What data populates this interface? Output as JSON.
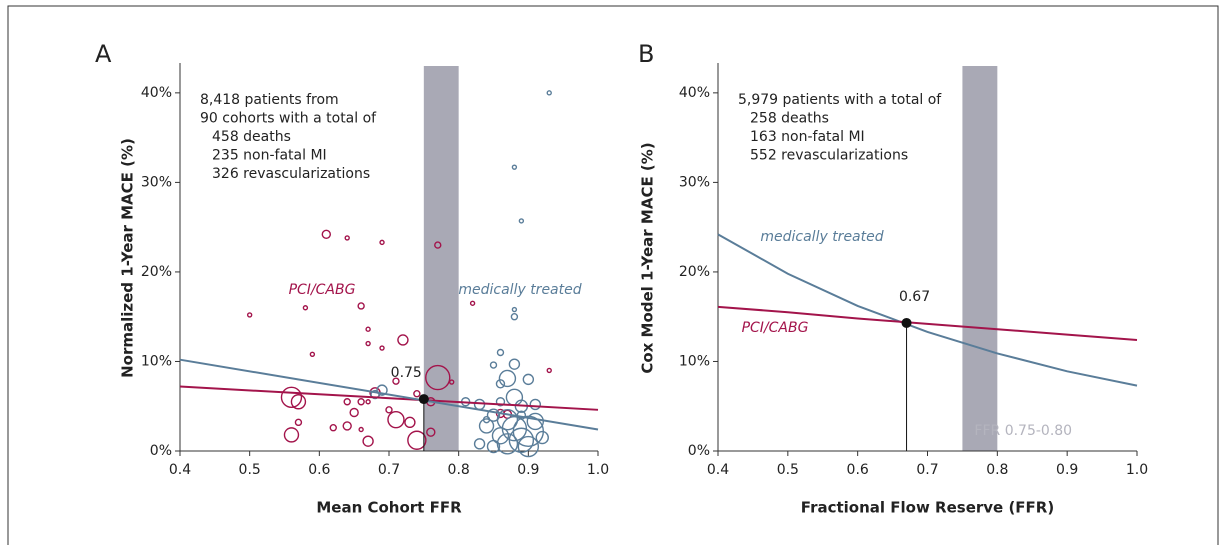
{
  "chart_data": [
    {
      "type": "scatter",
      "panel": "A",
      "ylabel": "Normalized 1-Year MACE (%)",
      "xlabel": "Mean Cohort FFR",
      "xlim": [
        0.4,
        1.0
      ],
      "ylim": [
        0,
        43
      ],
      "xticks": [
        0.4,
        0.5,
        0.6,
        0.7,
        0.8,
        0.9,
        {
          "value": 1,
          "label": "1.0"
        }
      ],
      "yticks": [
        {
          "value": 0,
          "label": "0%"
        },
        {
          "value": 10,
          "label": "10%"
        },
        {
          "value": 20,
          "label": "20%"
        },
        {
          "value": 30,
          "label": "30%"
        },
        {
          "value": 40,
          "label": "40%"
        }
      ],
      "band": {
        "range": [
          0.75,
          0.8
        ],
        "color": "#a9a9b5"
      },
      "note": [
        "8,418 patients from",
        "90 cohorts with a total of"
      ],
      "note_items": [
        "458 deaths",
        "235 non-fatal MI",
        "326 revascularizations"
      ],
      "crossover": {
        "x": 0.75,
        "y": 5.8
      },
      "series": [
        {
          "name": "PCI/CABG",
          "color": "#a3144b",
          "x": [
            0.61,
            0.64,
            0.69,
            0.77,
            0.5,
            0.58,
            0.66,
            0.67,
            0.67,
            0.72,
            0.59,
            0.69,
            0.82,
            0.93,
            0.56,
            0.57,
            0.56,
            0.57,
            0.62,
            0.64,
            0.64,
            0.65,
            0.66,
            0.67,
            0.67,
            0.68,
            0.7,
            0.71,
            0.71,
            0.73,
            0.74,
            0.77,
            0.76,
            0.76,
            0.79,
            0.86,
            0.87,
            0.66,
            0.74
          ],
          "values": [
            24.2,
            23.8,
            23.3,
            23,
            15.2,
            16,
            16.2,
            13.6,
            12,
            12.4,
            10.8,
            11.5,
            16.5,
            9,
            6,
            5.5,
            1.8,
            3.2,
            2.6,
            2.8,
            5.5,
            4.3,
            5.5,
            5.5,
            1.1,
            6.5,
            4.6,
            3.5,
            7.8,
            3.2,
            1.2,
            8.2,
            5.5,
            2.1,
            7.7,
            4.2,
            4.1,
            2.4,
            6.4
          ],
          "sizes": [
            4,
            2,
            2,
            3,
            2,
            2,
            3,
            2,
            2,
            5,
            2,
            2,
            2,
            2,
            10,
            7,
            7,
            3,
            3,
            4,
            3,
            4,
            3,
            2,
            5,
            5,
            3,
            8,
            3,
            5,
            9,
            12,
            4,
            4,
            2,
            4,
            4,
            2,
            3
          ],
          "fit": {
            "x": [
              0.4,
              1.0
            ],
            "values": [
              7.2,
              4.6
            ]
          }
        },
        {
          "name": "medically treated",
          "color": "#5a7d99",
          "x": [
            0.93,
            0.88,
            0.89,
            0.88,
            0.88,
            0.86,
            0.85,
            0.88,
            0.87,
            0.9,
            0.81,
            0.83,
            0.84,
            0.85,
            0.86,
            0.87,
            0.88,
            0.88,
            0.89,
            0.89,
            0.9,
            0.9,
            0.91,
            0.91,
            0.86,
            0.87,
            0.85,
            0.83,
            0.92,
            0.86,
            0.84,
            0.69,
            0.68,
            0.89
          ],
          "values": [
            40,
            31.7,
            25.7,
            15.8,
            15,
            11,
            9.6,
            9.7,
            8.1,
            8,
            5.5,
            5.2,
            2.8,
            4,
            5.5,
            3.5,
            2.5,
            6,
            5,
            1.2,
            2.2,
            0.5,
            3.3,
            5.2,
            1.7,
            0.8,
            0.5,
            0.8,
            1.5,
            7.5,
            3.5,
            6.8,
            6.3,
            4
          ],
          "sizes": [
            2,
            2,
            2,
            2,
            3,
            3,
            3,
            5,
            8,
            5,
            4,
            5,
            7,
            6,
            4,
            10,
            12,
            8,
            6,
            12,
            15,
            10,
            8,
            5,
            8,
            10,
            6,
            5,
            6,
            4,
            3,
            5,
            4,
            4
          ],
          "fit": {
            "x": [
              0.4,
              1.0
            ],
            "values": [
              10.2,
              2.4
            ]
          }
        }
      ]
    },
    {
      "type": "line",
      "panel": "B",
      "ylabel": "Cox Model 1-Year MACE (%)",
      "xlabel": "Fractional Flow Reserve (FFR)",
      "xlim": [
        0.4,
        1.0
      ],
      "ylim": [
        0,
        43
      ],
      "xticks": [
        0.4,
        0.5,
        0.6,
        0.7,
        0.8,
        0.9,
        {
          "value": 1,
          "label": "1.0"
        }
      ],
      "yticks": [
        {
          "value": 0,
          "label": "0%"
        },
        {
          "value": 10,
          "label": "10%"
        },
        {
          "value": 20,
          "label": "20%"
        },
        {
          "value": 30,
          "label": "30%"
        },
        {
          "value": 40,
          "label": "40%"
        }
      ],
      "band": {
        "range": [
          0.75,
          0.8
        ],
        "color": "#a9a9b5",
        "label": "FFR 0.75-0.80"
      },
      "note": [
        "5,979 patients with a total of"
      ],
      "note_items": [
        "258 deaths",
        "163 non-fatal MI",
        "552 revascularizations"
      ],
      "crossover": {
        "x": 0.67,
        "y": 14.3
      },
      "series": [
        {
          "name": "medically treated",
          "color": "#5a7d99",
          "x": [
            0.4,
            0.5,
            0.6,
            0.7,
            0.8,
            0.9,
            1.0
          ],
          "values": [
            24.2,
            19.8,
            16.2,
            13.3,
            10.9,
            8.9,
            7.3
          ]
        },
        {
          "name": "PCI/CABG",
          "color": "#a3144b",
          "x": [
            0.4,
            0.5,
            0.6,
            0.7,
            0.8,
            0.9,
            1.0
          ],
          "values": [
            16.1,
            15.5,
            14.8,
            14.2,
            13.6,
            13.0,
            12.4
          ]
        }
      ]
    }
  ]
}
